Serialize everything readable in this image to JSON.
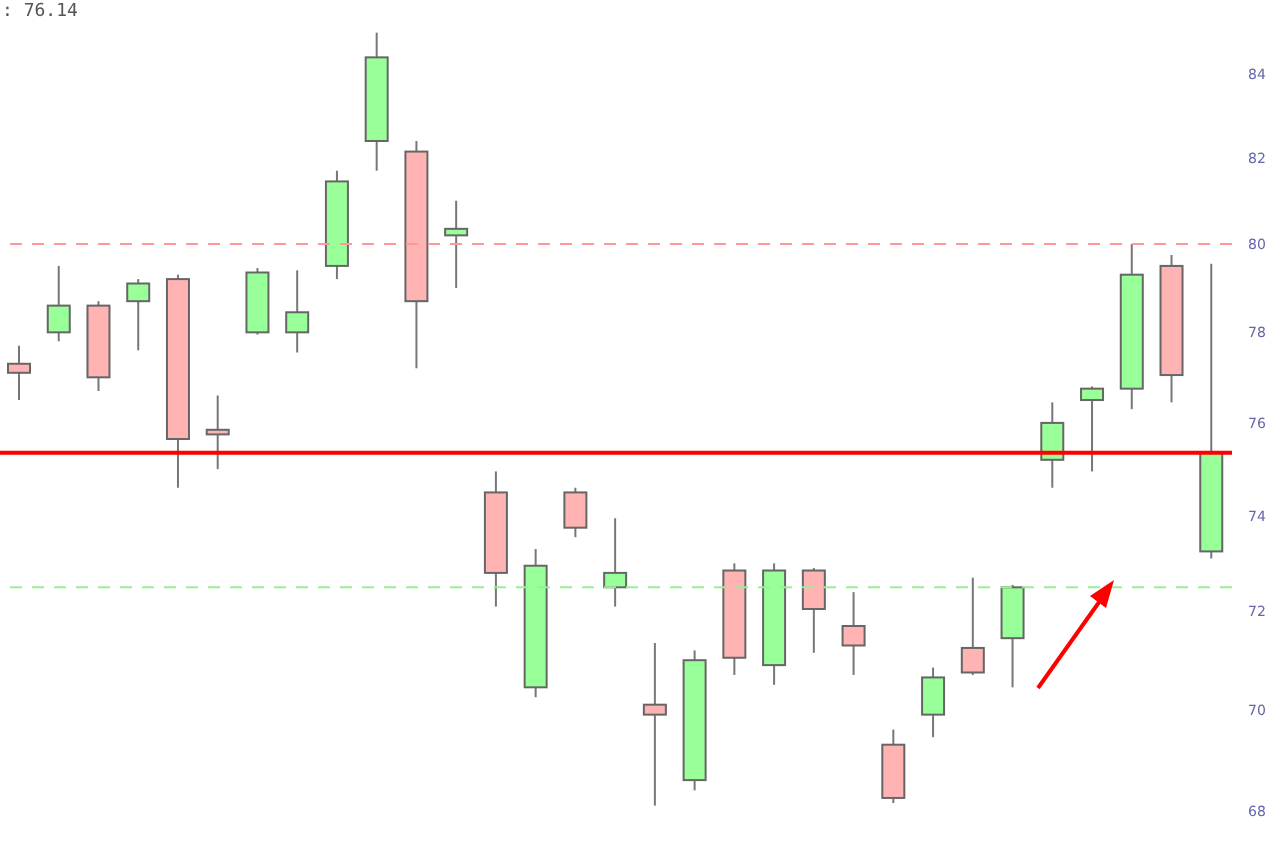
{
  "chart_data": {
    "type": "candlestick",
    "categories": [
      null,
      null,
      null,
      null,
      null,
      null,
      null,
      null,
      null,
      null,
      null,
      null,
      null,
      null,
      null,
      null,
      null,
      null,
      null,
      null,
      null,
      null,
      null,
      null,
      null,
      null,
      null,
      null,
      null,
      null,
      null
    ],
    "ohlc": [
      [
        77.3,
        77.7,
        76.5,
        77.1
      ],
      [
        78.0,
        79.5,
        77.8,
        78.6
      ],
      [
        78.6,
        78.7,
        76.7,
        77.0
      ],
      [
        78.7,
        79.2,
        77.6,
        79.1
      ],
      [
        79.2,
        79.3,
        74.6,
        75.65
      ],
      [
        75.85,
        76.6,
        75.0,
        75.75
      ],
      [
        78.0,
        79.45,
        77.95,
        79.35
      ],
      [
        78.0,
        79.4,
        77.55,
        78.45
      ],
      [
        79.5,
        81.7,
        79.2,
        81.45
      ],
      [
        82.4,
        85.0,
        81.7,
        84.4
      ],
      [
        82.15,
        82.4,
        77.2,
        78.7
      ],
      [
        80.2,
        81.0,
        79.0,
        80.35
      ],
      [
        74.5,
        74.95,
        72.1,
        72.8
      ],
      [
        70.45,
        73.3,
        70.25,
        72.95
      ],
      [
        74.5,
        74.6,
        73.55,
        73.75
      ],
      [
        72.5,
        73.95,
        72.1,
        72.8
      ],
      [
        70.1,
        71.35,
        68.1,
        69.9
      ],
      [
        68.6,
        71.2,
        68.4,
        71.0
      ],
      [
        72.85,
        73.0,
        70.7,
        71.05
      ],
      [
        70.9,
        73.0,
        70.5,
        72.85
      ],
      [
        72.85,
        72.9,
        71.15,
        72.05
      ],
      [
        71.7,
        72.4,
        70.7,
        71.3
      ],
      [
        69.3,
        69.6,
        68.15,
        68.25
      ],
      [
        69.9,
        70.85,
        69.45,
        70.65
      ],
      [
        71.25,
        72.7,
        70.7,
        70.75
      ],
      [
        71.45,
        72.55,
        70.45,
        72.5
      ],
      [
        75.2,
        76.45,
        74.6,
        76.0
      ],
      [
        76.5,
        76.8,
        74.95,
        76.75
      ],
      [
        76.75,
        80.0,
        76.3,
        79.3
      ],
      [
        79.5,
        79.75,
        76.45,
        77.05
      ],
      [
        73.25,
        79.55,
        73.1,
        75.35
      ]
    ],
    "colors": [
      "#ffb3b3",
      "#99ff99",
      "#ffb3b3",
      "#99ff99",
      "#ffb3b3",
      "#ffb3b3",
      "#99ff99",
      "#99ff99",
      "#99ff99",
      "#99ff99",
      "#ffb3b3",
      "#99ff99",
      "#ffb3b3",
      "#99ff99",
      "#ffb3b3",
      "#99ff99",
      "#ffb3b3",
      "#99ff99",
      "#ffb3b3",
      "#99ff99",
      "#ffb3b3",
      "#ffb3b3",
      "#ffb3b3",
      "#99ff99",
      "#ffb3b3",
      "#99ff99",
      "#99ff99",
      "#99ff99",
      "#99ff99",
      "#ffb3b3",
      "#99ff99"
    ],
    "ylim": [
      67.2,
      85.8
    ],
    "yticks": [
      68,
      70,
      72,
      74,
      76,
      78,
      80,
      82,
      84
    ],
    "log": true,
    "tick_labels": "y",
    "ref_lines": [
      {
        "axis": "y",
        "value": 80,
        "color": "#ff9999",
        "line_style": "dashed"
      },
      {
        "axis": "y",
        "value": 72.5,
        "color": "#99ee99",
        "line_style": "dashed"
      },
      {
        "axis": "y",
        "value": 75.35,
        "color": "#ff0000",
        "line_style": "solid"
      }
    ],
    "annotations": [
      ": 76.14"
    ]
  }
}
